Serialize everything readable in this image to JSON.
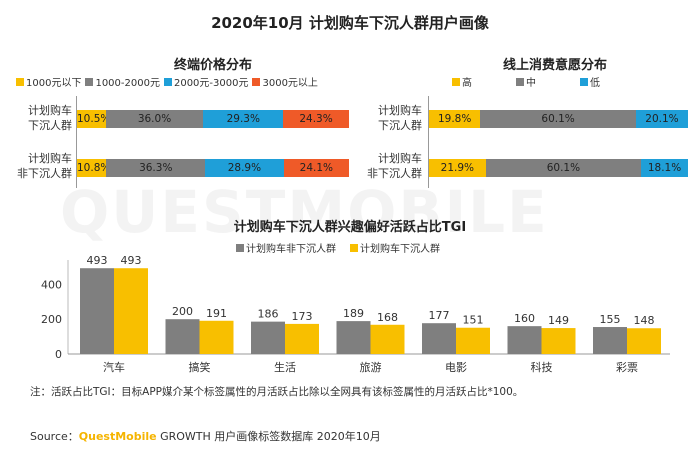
{
  "title": "2020年10月 计划购车下沉人群用户画像",
  "colors": {
    "yellow": "#f8bf00",
    "gray": "#7f7f7f",
    "blue": "#1f9fd8",
    "red": "#ef5a28"
  },
  "price": {
    "subtitle": "终端价格分布",
    "legend": [
      "1000元以下",
      "1000-2000元",
      "2000元-3000元",
      "3000元以上"
    ],
    "rows": [
      {
        "label_line1": "计划购车",
        "label_line2": "下沉人群",
        "labels": [
          "10.5%",
          "36.0%",
          "29.3%",
          "24.3%"
        ]
      },
      {
        "label_line1": "计划购车",
        "label_line2": "非下沉人群",
        "labels": [
          "10.8%",
          "36.3%",
          "28.9%",
          "24.1%"
        ]
      }
    ]
  },
  "consume": {
    "subtitle": "线上消费意愿分布",
    "legend": [
      "高",
      "中",
      "低"
    ],
    "rows": [
      {
        "label_line1": "计划购车",
        "label_line2": "下沉人群",
        "labels": [
          "19.8%",
          "60.1%",
          "20.1%"
        ]
      },
      {
        "label_line1": "计划购车",
        "label_line2": "非下沉人群",
        "labels": [
          "21.9%",
          "60.1%",
          "18.1%"
        ]
      }
    ]
  },
  "chart_data": [
    {
      "type": "bar",
      "stacked": true,
      "title": "终端价格分布",
      "categories": [
        "计划购车下沉人群",
        "计划购车非下沉人群"
      ],
      "series": [
        {
          "name": "1000元以下",
          "values": [
            10.5,
            10.8
          ]
        },
        {
          "name": "1000-2000元",
          "values": [
            36.0,
            36.3
          ]
        },
        {
          "name": "2000元-3000元",
          "values": [
            29.3,
            28.9
          ]
        },
        {
          "name": "3000元以上",
          "values": [
            24.3,
            24.1
          ]
        }
      ]
    },
    {
      "type": "bar",
      "stacked": true,
      "title": "线上消费意愿分布",
      "categories": [
        "计划购车下沉人群",
        "计划购车非下沉人群"
      ],
      "series": [
        {
          "name": "高",
          "values": [
            19.8,
            21.9
          ]
        },
        {
          "name": "中",
          "values": [
            60.1,
            60.1
          ]
        },
        {
          "name": "低",
          "values": [
            20.1,
            18.1
          ]
        }
      ]
    },
    {
      "type": "bar",
      "title": "计划购车下沉人群兴趣偏好活跃占比TGI",
      "categories": [
        "汽车",
        "搞笑",
        "生活",
        "旅游",
        "电影",
        "科技",
        "彩票"
      ],
      "series": [
        {
          "name": "计划购车非下沉人群",
          "values": [
            493,
            200,
            186,
            189,
            177,
            160,
            155
          ]
        },
        {
          "name": "计划购车下沉人群",
          "values": [
            493,
            191,
            173,
            168,
            151,
            149,
            148
          ]
        }
      ],
      "ylim": [
        0,
        600
      ],
      "yticks": [
        "0",
        "200",
        "400"
      ]
    }
  ],
  "note": "注：活跃占比TGI：目标APP媒介某个标签属性的月活跃占比除以全网具有该标签属性的月活跃占比*100。",
  "source": {
    "prefix": "Source：",
    "brand": "QuestMobile",
    "rest": " GROWTH 用户画像标签数据库 2020年10月"
  },
  "watermark": "QUESTMOBILE"
}
